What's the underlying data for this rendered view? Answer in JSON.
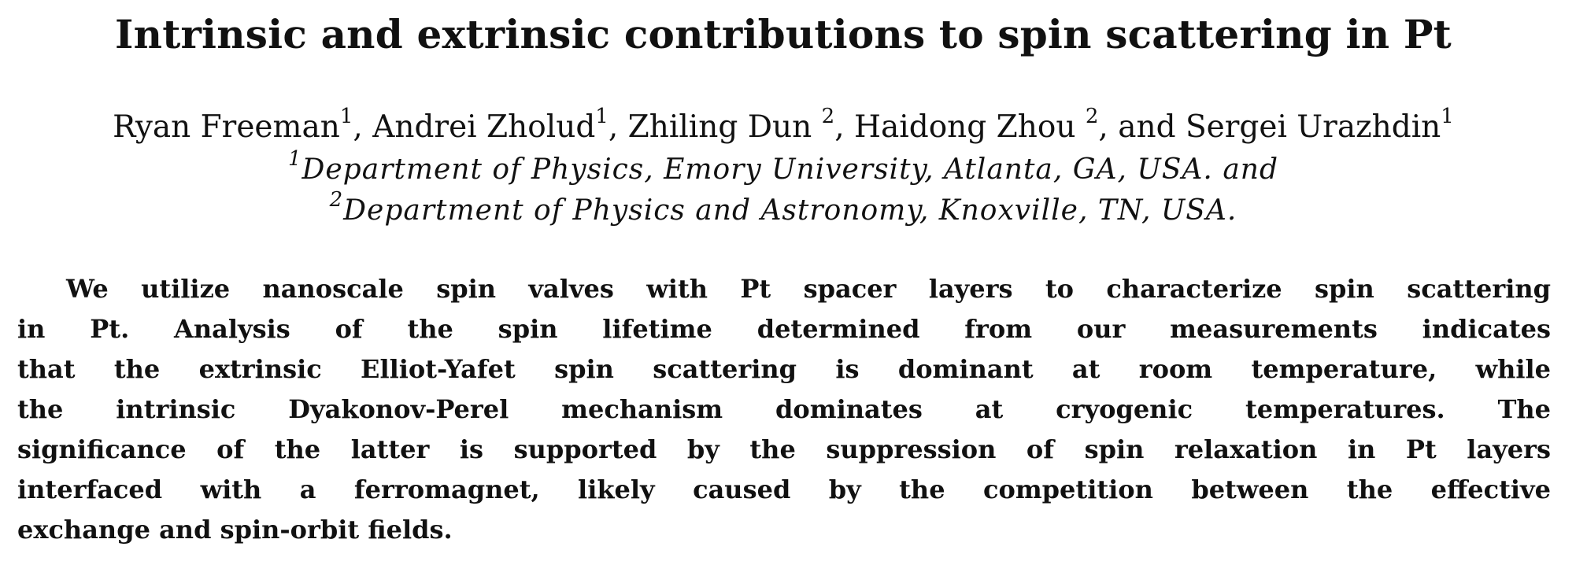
{
  "paper": {
    "title": "Intrinsic and extrinsic contributions to spin scattering in Pt",
    "authors": [
      {
        "name": "Ryan Freeman",
        "sup": "1",
        "sep": ", "
      },
      {
        "name": "Andrei Zholud",
        "sup": "1",
        "sep": ", "
      },
      {
        "name": "Zhiling Dun ",
        "sup": "2",
        "sep": ", "
      },
      {
        "name": "Haidong Zhou ",
        "sup": "2",
        "sep": ", and "
      },
      {
        "name": "Sergei Urazhdin",
        "sup": "1",
        "sep": ""
      }
    ],
    "affiliations": [
      {
        "sup": "1",
        "text": "Department of Physics, Emory University, Atlanta, GA, USA. and"
      },
      {
        "sup": "2",
        "text": "Department of Physics and Astronomy, Knoxville, TN, USA."
      }
    ],
    "abstract_lines": [
      "We utilize nanoscale spin valves with Pt spacer layers to characterize spin scattering",
      "in Pt.  Analysis of the spin lifetime determined from our measurements indicates",
      "that the extrinsic Elliot-Yafet spin scattering is dominant at room temperature, while",
      "the intrinsic Dyakonov-Perel mechanism dominates at cryogenic temperatures.  The",
      "significance of the latter is supported by the suppression of spin relaxation in Pt layers",
      "interfaced with a ferromagnet, likely caused by the competition between the effective",
      "exchange and spin-orbit fields."
    ]
  }
}
